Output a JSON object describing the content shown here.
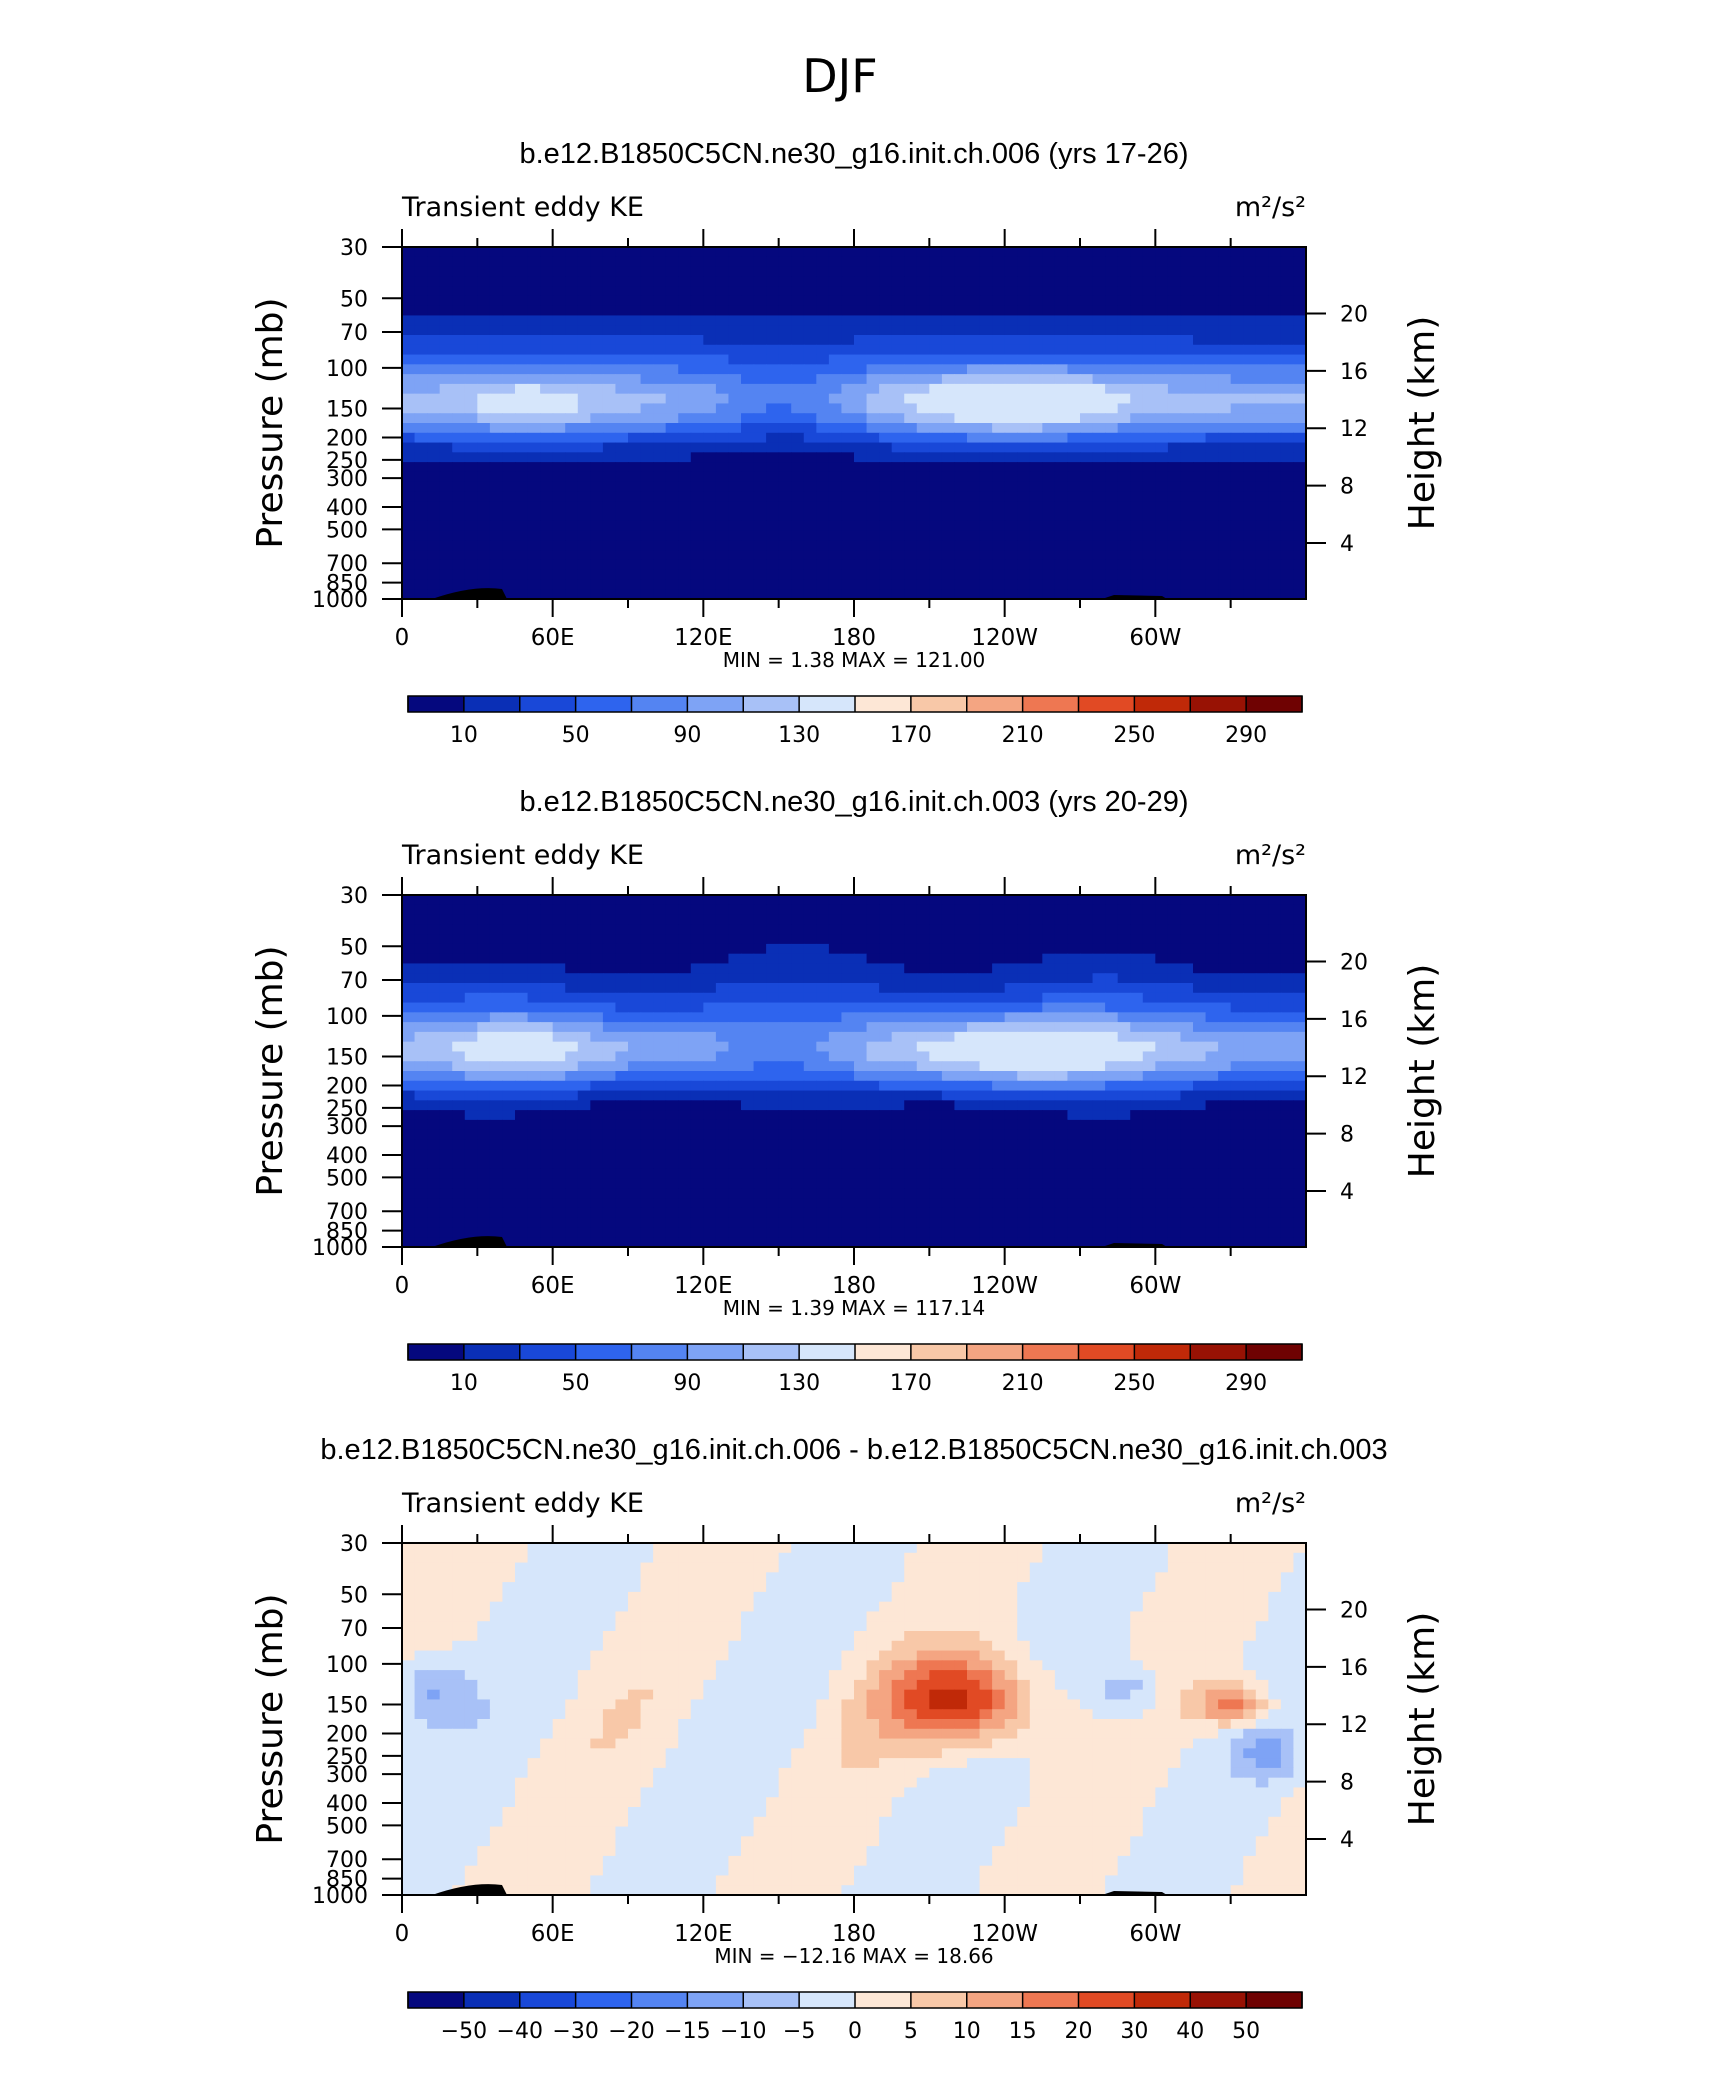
{
  "figure": {
    "title": "DJF"
  },
  "chart_data": [
    {
      "type": "heatmap",
      "title": "b.e12.B1850C5CN.ne30_g16.init.ch.006 (yrs 17-26)",
      "left_string": "Transient eddy KE",
      "right_string": "m²/s²",
      "ylabel": "Pressure  (mb)",
      "ylabel_right": "Height  (km)",
      "x_ticks": [
        "0",
        "60E",
        "120E",
        "180",
        "120W",
        "60W"
      ],
      "y_ticks": [
        "30",
        "50",
        "70",
        "100",
        "150",
        "200",
        "250",
        "300",
        "400",
        "500",
        "700",
        "850",
        "1000"
      ],
      "y_right_ticks": [
        "4",
        "8",
        "12",
        "16",
        "20"
      ],
      "ylim": [
        1000,
        30
      ],
      "log_y": true,
      "stats": "MIN =     1.38   MAX =  121.00",
      "min": 1.38,
      "max": 121.0,
      "colorbar": {
        "labels": [
          "10",
          "50",
          "90",
          "130",
          "170",
          "210",
          "250",
          "290"
        ],
        "colors": [
          "#05087e",
          "#0a2fb6",
          "#1948d8",
          "#2e64ee",
          "#5484f2",
          "#7ea3f5",
          "#a8c1f7",
          "#d6e6fb",
          "#fde7d6",
          "#f8c8a8",
          "#f4a582",
          "#ee7752",
          "#e14a24",
          "#c02908",
          "#981204",
          "#6f0202"
        ]
      }
    },
    {
      "type": "heatmap",
      "title": "b.e12.B1850C5CN.ne30_g16.init.ch.003 (yrs 20-29)",
      "left_string": "Transient eddy KE",
      "right_string": "m²/s²",
      "ylabel": "Pressure  (mb)",
      "ylabel_right": "Height  (km)",
      "x_ticks": [
        "0",
        "60E",
        "120E",
        "180",
        "120W",
        "60W"
      ],
      "y_ticks": [
        "30",
        "50",
        "70",
        "100",
        "150",
        "200",
        "250",
        "300",
        "400",
        "500",
        "700",
        "850",
        "1000"
      ],
      "y_right_ticks": [
        "4",
        "8",
        "12",
        "16",
        "20"
      ],
      "ylim": [
        1000,
        30
      ],
      "log_y": true,
      "stats": "MIN =     1.39   MAX =  117.14",
      "min": 1.39,
      "max": 117.14,
      "colorbar": {
        "labels": [
          "10",
          "50",
          "90",
          "130",
          "170",
          "210",
          "250",
          "290"
        ],
        "colors": [
          "#05087e",
          "#0a2fb6",
          "#1948d8",
          "#2e64ee",
          "#5484f2",
          "#7ea3f5",
          "#a8c1f7",
          "#d6e6fb",
          "#fde7d6",
          "#f8c8a8",
          "#f4a582",
          "#ee7752",
          "#e14a24",
          "#c02908",
          "#981204",
          "#6f0202"
        ]
      }
    },
    {
      "type": "heatmap",
      "title": "b.e12.B1850C5CN.ne30_g16.init.ch.006 - b.e12.B1850C5CN.ne30_g16.init.ch.003",
      "left_string": "Transient eddy KE",
      "right_string": "m²/s²",
      "ylabel": "Pressure  (mb)",
      "ylabel_right": "Height  (km)",
      "x_ticks": [
        "0",
        "60E",
        "120E",
        "180",
        "120W",
        "60W"
      ],
      "y_ticks": [
        "30",
        "50",
        "70",
        "100",
        "150",
        "200",
        "250",
        "300",
        "400",
        "500",
        "700",
        "850",
        "1000"
      ],
      "y_right_ticks": [
        "4",
        "8",
        "12",
        "16",
        "20"
      ],
      "ylim": [
        1000,
        30
      ],
      "log_y": true,
      "stats": "MIN =  −12.16   MAX =    18.66",
      "min": -12.16,
      "max": 18.66,
      "colorbar": {
        "labels": [
          "−50",
          "−40",
          "−30",
          "−20",
          "−15",
          "−10",
          "−5",
          "0",
          "5",
          "10",
          "15",
          "20",
          "30",
          "40",
          "50"
        ],
        "colors": [
          "#05087e",
          "#0a2fb6",
          "#1948d8",
          "#2e64ee",
          "#5484f2",
          "#7ea3f5",
          "#a8c1f7",
          "#d6e6fb",
          "#fde7d6",
          "#f8c8a8",
          "#f4a582",
          "#ee7752",
          "#e14a24",
          "#c02908",
          "#981204",
          "#6f0202"
        ]
      }
    }
  ]
}
